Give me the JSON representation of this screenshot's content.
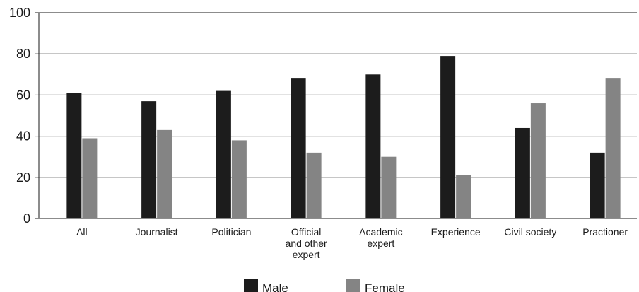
{
  "chart_data": {
    "type": "bar",
    "title": "",
    "xlabel": "",
    "ylabel": "",
    "ylim": [
      0,
      100
    ],
    "yticks": [
      0,
      20,
      40,
      60,
      80,
      100
    ],
    "grid": true,
    "legend": "bottom",
    "categories": [
      [
        "All"
      ],
      [
        "Journalist"
      ],
      [
        "Politician"
      ],
      [
        "Official",
        "and other",
        "expert"
      ],
      [
        "Academic",
        "expert"
      ],
      [
        "Experience"
      ],
      [
        "Civil society"
      ],
      [
        "Practioner"
      ]
    ],
    "series": [
      {
        "name": "Male",
        "color": "#1c1c1c",
        "values": [
          61,
          57,
          62,
          68,
          70,
          79,
          44,
          32
        ]
      },
      {
        "name": "Female",
        "color": "#848484",
        "values": [
          39,
          43,
          38,
          32,
          30,
          21,
          56,
          68
        ]
      }
    ]
  }
}
